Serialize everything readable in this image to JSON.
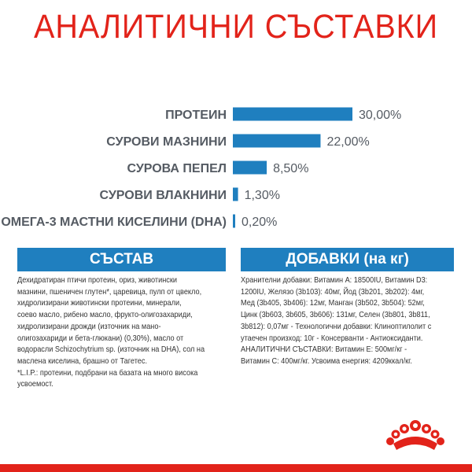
{
  "title": "АНАЛИТИЧНИ СЪСТАВКИ",
  "chart_data": {
    "type": "bar",
    "orientation": "horizontal",
    "categories": [
      "ПРОТЕИН",
      "СУРОВИ МАЗНИНИ",
      "СУРОВА ПЕПЕЛ",
      "СУРОВИ ВЛАКНИНИ",
      "ОМЕГА-3 МАСТНИ КИСЕЛИНИ (DHA)"
    ],
    "values": [
      30.0,
      22.0,
      8.5,
      1.3,
      0.2
    ],
    "value_labels": [
      "30,00%",
      "22,00%",
      "8,50%",
      "1,30%",
      "0,20%"
    ],
    "title": "АНАЛИТИЧНИ СЪСТАВКИ",
    "xlabel": "",
    "ylabel": "",
    "xlim": [
      0,
      30
    ],
    "grid": false,
    "bar_color": "#1f7fbf"
  },
  "composition": {
    "header": "СЪСТАВ",
    "lines": [
      "Дехидратиран птичи протеин, ориз, животински",
      "мазнини, пшеничен глутен*, царевица, пулп от цвекло,",
      "хидролизирани животински протеини, минерали,",
      "соево масло, рибено масло, фрукто-олигозахариди,",
      "хидролизирани дрожди (източник на мано-",
      "олигозахариди и бета-глюкани) (0,30%), масло от",
      "водорасли Schizochytrium sp. (източник на DHA), сол на",
      "маслена киселина, брашно от Тагетес.",
      "*L.I.P.: протеини, подбрани на базата на много висока",
      "усвоемост."
    ]
  },
  "additives": {
    "header": "ДОБАВКИ (на кг)",
    "lines": [
      "Хранителни добавки: Витамин A: 18500IU, Витамин D3:",
      "1200IU, Желязо (3b103): 40мг, Йод (3b201, 3b202): 4мг,",
      "Мед (3b405, 3b406): 12мг, Манган (3b502, 3b504): 52мг,",
      "Цинк (3b603, 3b605, 3b606): 131мг, Селен (3b801, 3b811,",
      "3b812): 0,07мг - Технологични добавки: Клиноптилолит с",
      "утаечен произход: 10г - Консерванти - Антиоксиданти.",
      "АНАЛИТИЧНИ СЪСТАВКИ: Витамин E: 500мг/кг -",
      "Витамин C: 400мг/кг. Усвоима енергия: 4209ккал/кг."
    ]
  },
  "colors": {
    "brand_red": "#e2231a",
    "accent_blue": "#1f7fbf",
    "label_gray": "#555b63"
  },
  "logo": {
    "icon": "royal-canin-crown-logo"
  }
}
